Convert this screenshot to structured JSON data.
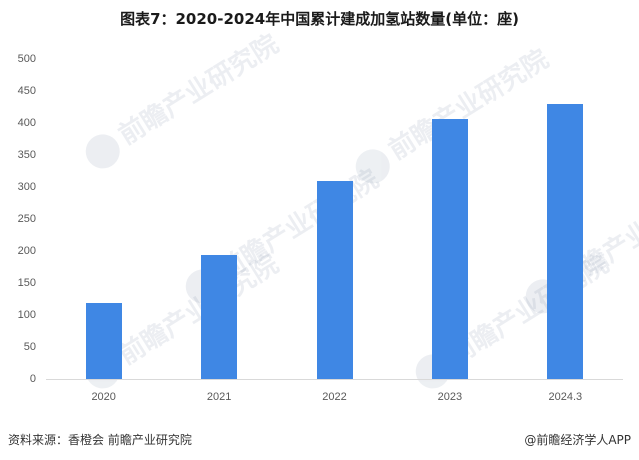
{
  "title": "图表7：2020-2024年中国累计建成加氢站数量(单位：座)",
  "footer": {
    "source": "资料来源：香橙会 前瞻产业研究院",
    "credit": "@前瞻经济学人APP"
  },
  "watermark": "前瞻产业研究院",
  "colors": {
    "bar": "#3F87E4",
    "axis": "#D9D9D9",
    "tick_text": "#595959"
  },
  "chart_data": {
    "type": "bar",
    "title": "图表7：2020-2024年中国累计建成加氢站数量(单位：座)",
    "xlabel": "",
    "ylabel": "",
    "categories": [
      "2020",
      "2021",
      "2022",
      "2023",
      "2024.3"
    ],
    "values": [
      118,
      193,
      310,
      407,
      430
    ],
    "ylim": [
      0,
      500
    ],
    "yticks": [
      0,
      50,
      100,
      150,
      200,
      250,
      300,
      350,
      400,
      450,
      500
    ],
    "grid": false,
    "legend": null
  }
}
